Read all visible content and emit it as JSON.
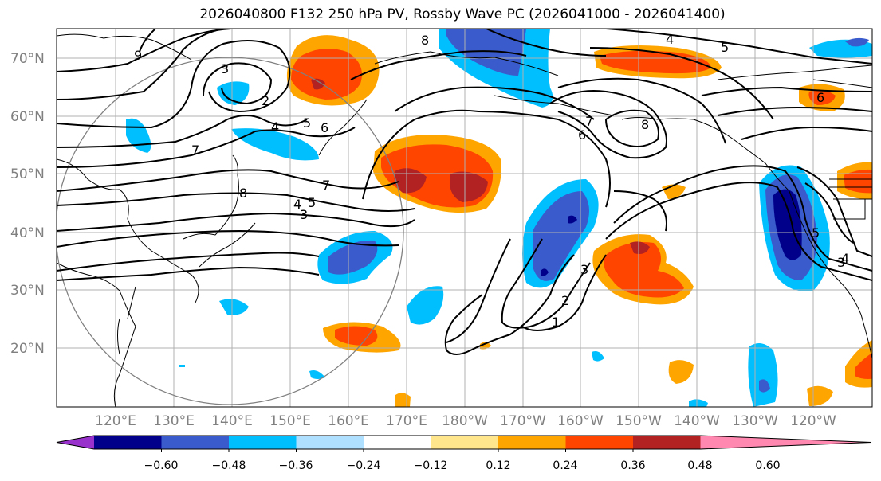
{
  "title": "2026040800 F132 250 hPa PV, Rossby Wave PC (2026041000 - 2026041400)",
  "lat_labels": [
    "70°N",
    "60°N",
    "50°N",
    "40°N",
    "30°N",
    "20°N"
  ],
  "lon_labels": [
    "120°E",
    "130°E",
    "140°E",
    "150°E",
    "160°E",
    "170°E",
    "180°W",
    "170°W",
    "160°W",
    "150°W",
    "140°W",
    "130°W",
    "120°W"
  ],
  "colorbar": {
    "ticks": [
      "−0.60",
      "−0.48",
      "−0.36",
      "−0.24",
      "−0.12",
      "0.12",
      "0.24",
      "0.36",
      "0.48",
      "0.60"
    ],
    "colors": [
      "#9932CC",
      "#00008B",
      "#3A5BCC",
      "#00BFFF",
      "#B0E0FF",
      "#FFFFFF",
      "#FFE68C",
      "#FFA500",
      "#FF4500",
      "#B22222",
      "#FF88B0"
    ]
  },
  "contour_labels": [
    "9",
    "8",
    "3",
    "2",
    "4",
    "5",
    "6",
    "7",
    "8",
    "7",
    "5",
    "4",
    "3",
    "4",
    "5",
    "6",
    "8",
    "7",
    "3",
    "2",
    "1",
    "3",
    "5",
    "6",
    "4"
  ]
}
